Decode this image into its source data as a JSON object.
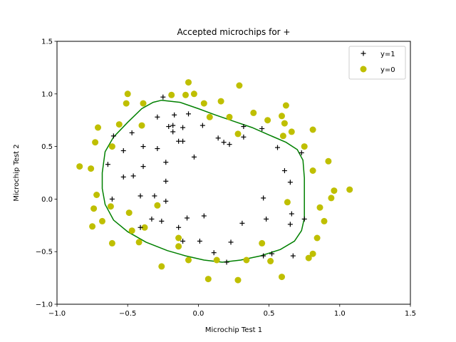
{
  "chart_data": {
    "type": "scatter",
    "title": "Accepted microchips for +",
    "xlabel": "Microchip Test 1",
    "ylabel": "Microchip Test 2",
    "xlim": [
      -1.0,
      1.5
    ],
    "ylim": [
      -1.0,
      1.5
    ],
    "xticks": [
      "−1.0",
      "−0.5",
      "0.0",
      "0.5",
      "1.0",
      "1.5"
    ],
    "yticks": [
      "−1.0",
      "−0.5",
      "0.0",
      "0.5",
      "1.0",
      "1.5"
    ],
    "xtick_values": [
      -1.0,
      -0.5,
      0.0,
      0.5,
      1.0,
      1.5
    ],
    "ytick_values": [
      -1.0,
      -0.5,
      0.0,
      0.5,
      1.0,
      1.5
    ],
    "grid": false,
    "legend_position": "top-right",
    "series": [
      {
        "name": "y=1",
        "marker": "plus",
        "color": "#000000",
        "points": [
          [
            -0.25,
            0.97
          ],
          [
            -0.6,
            0.6
          ],
          [
            -0.47,
            0.63
          ],
          [
            -0.53,
            0.46
          ],
          [
            -0.64,
            0.33
          ],
          [
            -0.53,
            0.21
          ],
          [
            -0.46,
            0.22
          ],
          [
            -0.61,
            0.0
          ],
          [
            -0.39,
            0.5
          ],
          [
            -0.39,
            0.31
          ],
          [
            -0.29,
            0.78
          ],
          [
            -0.29,
            0.48
          ],
          [
            -0.21,
            0.69
          ],
          [
            -0.18,
            0.7
          ],
          [
            -0.18,
            0.64
          ],
          [
            -0.17,
            0.8
          ],
          [
            -0.11,
            0.68
          ],
          [
            -0.14,
            0.55
          ],
          [
            -0.11,
            0.55
          ],
          [
            -0.07,
            0.81
          ],
          [
            0.03,
            0.7
          ],
          [
            -0.03,
            0.4
          ],
          [
            -0.23,
            0.35
          ],
          [
            -0.23,
            0.17
          ],
          [
            -0.41,
            0.03
          ],
          [
            -0.31,
            0.03
          ],
          [
            -0.23,
            -0.02
          ],
          [
            -0.33,
            -0.19
          ],
          [
            -0.26,
            -0.21
          ],
          [
            -0.41,
            -0.27
          ],
          [
            -0.14,
            -0.27
          ],
          [
            -0.11,
            -0.4
          ],
          [
            -0.08,
            -0.18
          ],
          [
            0.01,
            -0.4
          ],
          [
            0.04,
            -0.16
          ],
          [
            0.11,
            -0.51
          ],
          [
            0.2,
            -0.6
          ],
          [
            0.23,
            -0.41
          ],
          [
            0.31,
            -0.23
          ],
          [
            0.14,
            0.58
          ],
          [
            0.18,
            0.54
          ],
          [
            0.22,
            0.52
          ],
          [
            0.32,
            0.69
          ],
          [
            0.32,
            0.59
          ],
          [
            0.45,
            0.67
          ],
          [
            0.56,
            0.49
          ],
          [
            0.61,
            0.27
          ],
          [
            0.65,
            0.16
          ],
          [
            0.46,
            0.01
          ],
          [
            0.48,
            -0.19
          ],
          [
            0.46,
            -0.54
          ],
          [
            0.52,
            -0.52
          ],
          [
            0.65,
            -0.24
          ],
          [
            0.66,
            -0.14
          ],
          [
            0.67,
            -0.54
          ],
          [
            0.73,
            0.44
          ],
          [
            0.75,
            -0.19
          ]
        ]
      },
      {
        "name": "y=0",
        "marker": "circle",
        "color": "#bfbf00",
        "points": [
          [
            -0.84,
            0.31
          ],
          [
            -0.76,
            0.29
          ],
          [
            -0.73,
            0.54
          ],
          [
            -0.71,
            0.68
          ],
          [
            -0.61,
            0.5
          ],
          [
            -0.56,
            0.71
          ],
          [
            -0.51,
            0.91
          ],
          [
            -0.5,
            1.0
          ],
          [
            -0.4,
            0.7
          ],
          [
            -0.39,
            0.91
          ],
          [
            -0.19,
            0.99
          ],
          [
            -0.09,
            0.99
          ],
          [
            -0.07,
            1.11
          ],
          [
            -0.03,
            1.0
          ],
          [
            0.04,
            0.91
          ],
          [
            0.08,
            0.78
          ],
          [
            0.16,
            0.93
          ],
          [
            0.22,
            0.78
          ],
          [
            0.29,
            1.08
          ],
          [
            0.28,
            0.62
          ],
          [
            0.39,
            0.82
          ],
          [
            0.49,
            0.75
          ],
          [
            0.59,
            0.79
          ],
          [
            0.6,
            0.6
          ],
          [
            0.61,
            0.72
          ],
          [
            0.62,
            0.89
          ],
          [
            0.66,
            0.64
          ],
          [
            0.75,
            0.5
          ],
          [
            0.81,
            0.66
          ],
          [
            0.81,
            0.27
          ],
          [
            0.92,
            0.36
          ],
          [
            0.94,
            0.01
          ],
          [
            0.96,
            0.08
          ],
          [
            1.07,
            0.09
          ],
          [
            0.86,
            -0.08
          ],
          [
            0.89,
            -0.21
          ],
          [
            0.84,
            -0.37
          ],
          [
            0.81,
            -0.52
          ],
          [
            0.78,
            -0.56
          ],
          [
            0.63,
            -0.03
          ],
          [
            0.59,
            -0.74
          ],
          [
            0.51,
            -0.59
          ],
          [
            0.45,
            -0.42
          ],
          [
            0.34,
            -0.58
          ],
          [
            0.28,
            -0.77
          ],
          [
            0.13,
            -0.58
          ],
          [
            0.07,
            -0.76
          ],
          [
            -0.07,
            -0.58
          ],
          [
            -0.14,
            -0.37
          ],
          [
            -0.14,
            -0.45
          ],
          [
            -0.26,
            -0.64
          ],
          [
            -0.42,
            -0.41
          ],
          [
            -0.47,
            -0.3
          ],
          [
            -0.38,
            -0.27
          ],
          [
            -0.49,
            -0.13
          ],
          [
            -0.29,
            -0.06
          ],
          [
            -0.62,
            -0.07
          ],
          [
            -0.68,
            -0.21
          ],
          [
            -0.74,
            -0.09
          ],
          [
            -0.72,
            0.04
          ],
          [
            -0.75,
            -0.26
          ],
          [
            -0.61,
            -0.42
          ]
        ]
      }
    ],
    "decision_boundary": {
      "color": "#008000",
      "points": [
        [
          -0.26,
          0.94
        ],
        [
          -0.13,
          0.92
        ],
        [
          0.0,
          0.86
        ],
        [
          0.12,
          0.8
        ],
        [
          0.25,
          0.74
        ],
        [
          0.38,
          0.68
        ],
        [
          0.5,
          0.61
        ],
        [
          0.62,
          0.54
        ],
        [
          0.7,
          0.47
        ],
        [
          0.74,
          0.37
        ],
        [
          0.75,
          0.2
        ],
        [
          0.75,
          0.0
        ],
        [
          0.75,
          -0.18
        ],
        [
          0.73,
          -0.3
        ],
        [
          0.68,
          -0.4
        ],
        [
          0.58,
          -0.48
        ],
        [
          0.44,
          -0.54
        ],
        [
          0.3,
          -0.58
        ],
        [
          0.17,
          -0.6
        ],
        [
          0.04,
          -0.58
        ],
        [
          -0.09,
          -0.54
        ],
        [
          -0.22,
          -0.49
        ],
        [
          -0.37,
          -0.41
        ],
        [
          -0.5,
          -0.31
        ],
        [
          -0.6,
          -0.2
        ],
        [
          -0.66,
          -0.05
        ],
        [
          -0.68,
          0.1
        ],
        [
          -0.68,
          0.25
        ],
        [
          -0.66,
          0.45
        ],
        [
          -0.6,
          0.59
        ],
        [
          -0.5,
          0.73
        ],
        [
          -0.4,
          0.86
        ],
        [
          -0.32,
          0.92
        ],
        [
          -0.26,
          0.94
        ]
      ]
    }
  }
}
